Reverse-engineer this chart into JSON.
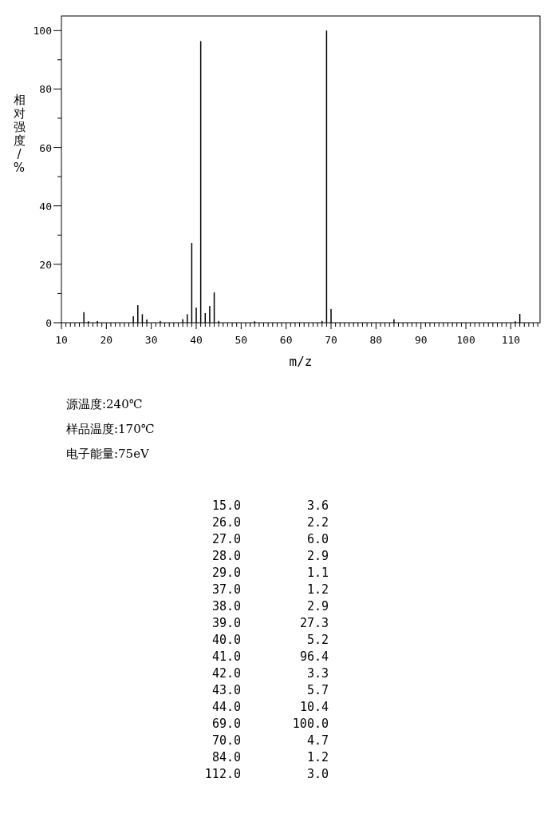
{
  "chart_data": {
    "type": "bar",
    "xlabel": "m/z",
    "ylabel": "相对强度/%",
    "x": [
      15,
      16,
      18,
      26,
      27,
      28,
      29,
      32,
      37,
      38,
      39,
      40,
      41,
      42,
      43,
      44,
      45,
      53,
      68,
      69,
      70,
      84,
      111,
      112
    ],
    "values": [
      3.6,
      0.5,
      0.6,
      2.2,
      6.0,
      2.9,
      1.1,
      0.6,
      1.2,
      2.9,
      27.3,
      5.2,
      96.4,
      3.3,
      5.7,
      10.4,
      0.6,
      0.5,
      0.6,
      100.0,
      4.7,
      1.2,
      0.5,
      3.0
    ],
    "color": "#000000",
    "xlim": [
      10,
      116.5
    ],
    "ylim": [
      0,
      105
    ],
    "xticks": [
      10,
      {
        "value": 11,
        "label": null
      },
      {
        "value": 12,
        "label": null
      },
      {
        "value": 13,
        "label": null
      },
      {
        "value": 14,
        "label": null
      },
      {
        "value": 15,
        "label": null
      },
      {
        "value": 16,
        "label": null
      },
      {
        "value": 17,
        "label": null
      },
      {
        "value": 18,
        "label": null
      },
      {
        "value": 19,
        "label": null
      },
      20,
      {
        "value": 21,
        "label": null
      },
      {
        "value": 22,
        "label": null
      },
      {
        "value": 23,
        "label": null
      },
      {
        "value": 24,
        "label": null
      },
      {
        "value": 25,
        "label": null
      },
      {
        "value": 26,
        "label": null
      },
      {
        "value": 27,
        "label": null
      },
      {
        "value": 28,
        "label": null
      },
      {
        "value": 29,
        "label": null
      },
      30,
      {
        "value": 31,
        "label": null
      },
      {
        "value": 32,
        "label": null
      },
      {
        "value": 33,
        "label": null
      },
      {
        "value": 34,
        "label": null
      },
      {
        "value": 35,
        "label": null
      },
      {
        "value": 36,
        "label": null
      },
      {
        "value": 37,
        "label": null
      },
      {
        "value": 38,
        "label": null
      },
      {
        "value": 39,
        "label": null
      },
      40,
      {
        "value": 41,
        "label": null
      },
      {
        "value": 42,
        "label": null
      },
      {
        "value": 43,
        "label": null
      },
      {
        "value": 44,
        "label": null
      },
      {
        "value": 45,
        "label": null
      },
      {
        "value": 46,
        "label": null
      },
      {
        "value": 47,
        "label": null
      },
      {
        "value": 48,
        "label": null
      },
      {
        "value": 49,
        "label": null
      },
      50,
      {
        "value": 51,
        "label": null
      },
      {
        "value": 52,
        "label": null
      },
      {
        "value": 53,
        "label": null
      },
      {
        "value": 54,
        "label": null
      },
      {
        "value": 55,
        "label": null
      },
      {
        "value": 56,
        "label": null
      },
      {
        "value": 57,
        "label": null
      },
      {
        "value": 58,
        "label": null
      },
      {
        "value": 59,
        "label": null
      },
      60,
      {
        "value": 61,
        "label": null
      },
      {
        "value": 62,
        "label": null
      },
      {
        "value": 63,
        "label": null
      },
      {
        "value": 64,
        "label": null
      },
      {
        "value": 65,
        "label": null
      },
      {
        "value": 66,
        "label": null
      },
      {
        "value": 67,
        "label": null
      },
      {
        "value": 68,
        "label": null
      },
      {
        "value": 69,
        "label": null
      },
      70,
      {
        "value": 71,
        "label": null
      },
      {
        "value": 72,
        "label": null
      },
      {
        "value": 73,
        "label": null
      },
      {
        "value": 74,
        "label": null
      },
      {
        "value": 75,
        "label": null
      },
      {
        "value": 76,
        "label": null
      },
      {
        "value": 77,
        "label": null
      },
      {
        "value": 78,
        "label": null
      },
      {
        "value": 79,
        "label": null
      },
      80,
      {
        "value": 81,
        "label": null
      },
      {
        "value": 82,
        "label": null
      },
      {
        "value": 83,
        "label": null
      },
      {
        "value": 84,
        "label": null
      },
      {
        "value": 85,
        "label": null
      },
      {
        "value": 86,
        "label": null
      },
      {
        "value": 87,
        "label": null
      },
      {
        "value": 88,
        "label": null
      },
      {
        "value": 89,
        "label": null
      },
      90,
      {
        "value": 91,
        "label": null
      },
      {
        "value": 92,
        "label": null
      },
      {
        "value": 93,
        "label": null
      },
      {
        "value": 94,
        "label": null
      },
      {
        "value": 95,
        "label": null
      },
      {
        "value": 96,
        "label": null
      },
      {
        "value": 97,
        "label": null
      },
      {
        "value": 98,
        "label": null
      },
      {
        "value": 99,
        "label": null
      },
      100,
      {
        "value": 101,
        "label": null
      },
      {
        "value": 102,
        "label": null
      },
      {
        "value": 103,
        "label": null
      },
      {
        "value": 104,
        "label": null
      },
      {
        "value": 105,
        "label": null
      },
      {
        "value": 106,
        "label": null
      },
      {
        "value": 107,
        "label": null
      },
      {
        "value": 108,
        "label": null
      },
      {
        "value": 109,
        "label": null
      },
      110,
      {
        "value": 111,
        "label": null
      },
      {
        "value": 112,
        "label": null
      },
      {
        "value": 113,
        "label": null
      },
      {
        "value": 114,
        "label": null
      },
      {
        "value": 115,
        "label": null
      },
      {
        "value": 116,
        "label": null
      }
    ],
    "yticks": [
      0,
      {
        "value": 10,
        "label": null
      },
      20,
      {
        "value": 30,
        "label": null
      },
      40,
      {
        "value": 50,
        "label": null
      },
      60,
      {
        "value": 70,
        "label": null
      },
      80,
      {
        "value": 90,
        "label": null
      },
      100
    ],
    "annotations": [
      "源温度:240℃",
      "样品温度:170℃",
      "电子能量:75eV",
      "15.0",
      "26.0",
      "27.0",
      "28.0",
      "29.0",
      "37.0",
      "38.0",
      "39.0",
      "40.0",
      "41.0",
      "42.0",
      "43.0",
      "44.0",
      "69.0",
      "70.0",
      "84.0",
      "112.0",
      "3.6",
      "2.2",
      "6.0",
      "2.9",
      "1.1",
      "1.2",
      "2.9",
      "27.3",
      "5.2",
      "96.4",
      "3.3",
      "5.7",
      "10.4",
      "100.0",
      "4.7",
      "1.2",
      "3.0"
    ]
  }
}
